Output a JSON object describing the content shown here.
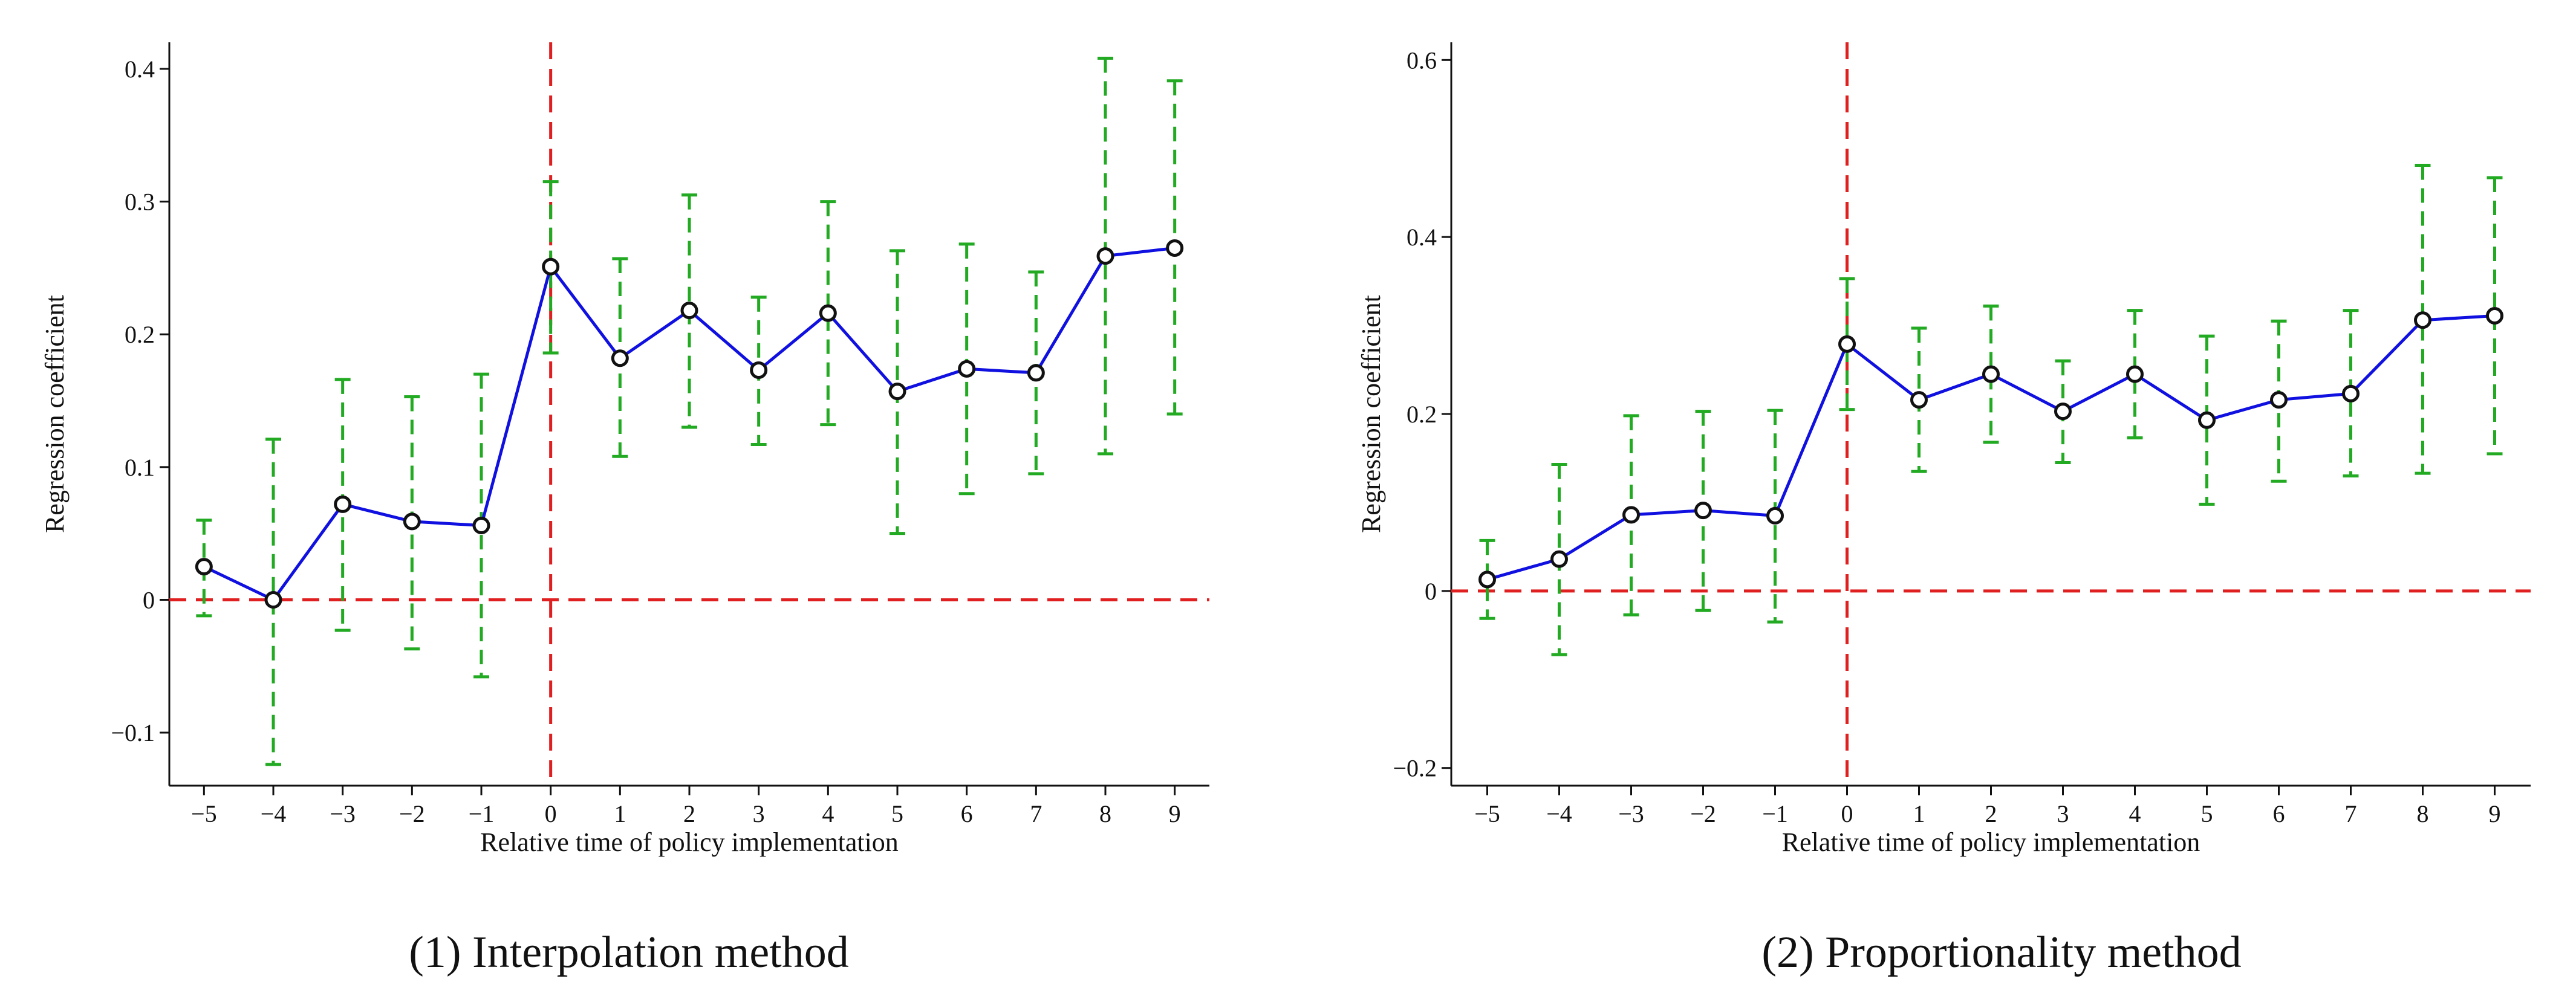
{
  "chart_data": [
    {
      "type": "line",
      "caption": "(1) Interpolation method",
      "xlabel": "Relative time of policy implementation",
      "ylabel": "Regression coefficient",
      "x": [
        -5,
        -4,
        -3,
        -2,
        -1,
        0,
        1,
        2,
        3,
        4,
        5,
        6,
        7,
        8,
        9
      ],
      "xtick_labels": [
        "−5",
        "−4",
        "−3",
        "−2",
        "−1",
        "0",
        "1",
        "2",
        "3",
        "4",
        "5",
        "6",
        "7",
        "8",
        "9"
      ],
      "xlim": [
        -5.5,
        9.5
      ],
      "ylim": [
        -0.14,
        0.42
      ],
      "yticks": [
        -0.1,
        0,
        0.1,
        0.2,
        0.3,
        0.4
      ],
      "ytick_labels": [
        "−0.1",
        "0",
        "0.1",
        "0.2",
        "0.3",
        "0.4"
      ],
      "series": [
        {
          "name": "coefficient",
          "values": [
            0.025,
            0.0,
            0.072,
            0.059,
            0.056,
            0.251,
            0.182,
            0.218,
            0.173,
            0.216,
            0.157,
            0.174,
            0.171,
            0.259,
            0.265
          ],
          "ci_lower": [
            -0.012,
            -0.124,
            -0.023,
            -0.037,
            -0.058,
            0.186,
            0.108,
            0.13,
            0.117,
            0.132,
            0.05,
            0.08,
            0.095,
            0.11,
            0.14
          ],
          "ci_upper": [
            0.06,
            0.121,
            0.166,
            0.153,
            0.17,
            0.315,
            0.257,
            0.305,
            0.228,
            0.3,
            0.263,
            0.268,
            0.247,
            0.408,
            0.391
          ]
        }
      ],
      "reference_lines": {
        "horizontal_y": 0,
        "vertical_x": 0
      },
      "colors": {
        "line": "#1010e0",
        "ci": "#22aa22",
        "ref": "#e02020",
        "marker": "#111111"
      }
    },
    {
      "type": "line",
      "caption": "(2) Proportionality method",
      "xlabel": "Relative time of policy implementation",
      "ylabel": "Regression coefficient",
      "x": [
        -5,
        -4,
        -3,
        -2,
        -1,
        0,
        1,
        2,
        3,
        4,
        5,
        6,
        7,
        8,
        9
      ],
      "xtick_labels": [
        "−5",
        "−4",
        "−3",
        "−2",
        "−1",
        "0",
        "1",
        "2",
        "3",
        "4",
        "5",
        "6",
        "7",
        "8",
        "9"
      ],
      "xlim": [
        -5.5,
        9.5
      ],
      "ylim": [
        -0.22,
        0.62
      ],
      "yticks": [
        -0.2,
        0,
        0.2,
        0.4,
        0.6
      ],
      "ytick_labels": [
        "−0.2",
        "0",
        "0.2",
        "0.4",
        "0.6"
      ],
      "series": [
        {
          "name": "coefficient",
          "values": [
            0.013,
            0.036,
            0.086,
            0.091,
            0.085,
            0.279,
            0.216,
            0.245,
            0.203,
            0.245,
            0.193,
            0.216,
            0.223,
            0.306,
            0.311
          ],
          "ci_lower": [
            -0.031,
            -0.072,
            -0.027,
            -0.022,
            -0.035,
            0.205,
            0.135,
            0.168,
            0.145,
            0.173,
            0.098,
            0.124,
            0.13,
            0.133,
            0.155
          ],
          "ci_upper": [
            0.057,
            0.143,
            0.198,
            0.203,
            0.204,
            0.353,
            0.297,
            0.322,
            0.26,
            0.317,
            0.288,
            0.305,
            0.317,
            0.481,
            0.467
          ]
        }
      ],
      "reference_lines": {
        "horizontal_y": 0,
        "vertical_x": 0
      },
      "colors": {
        "line": "#1010e0",
        "ci": "#22aa22",
        "ref": "#e02020",
        "marker": "#111111"
      }
    }
  ]
}
